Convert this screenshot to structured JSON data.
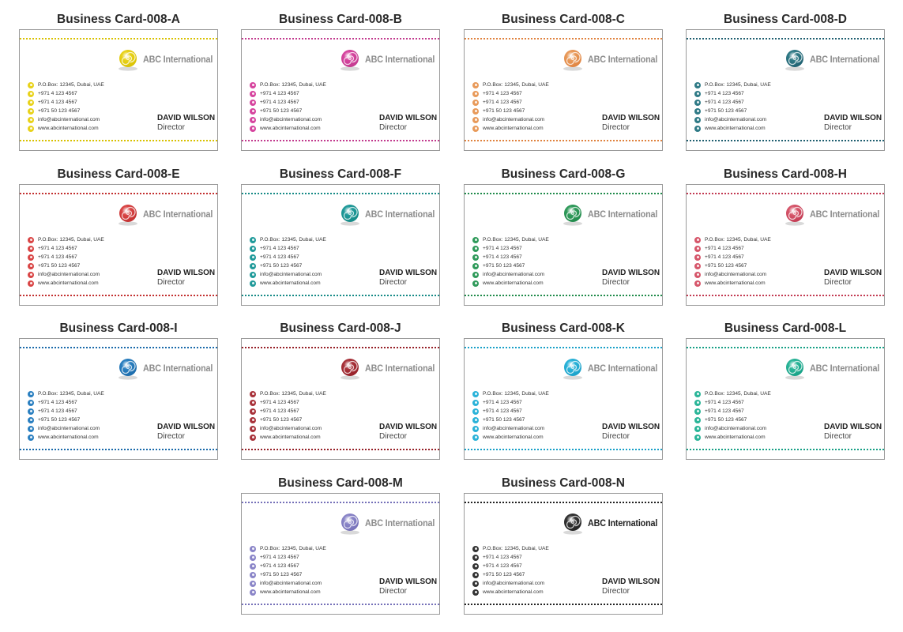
{
  "card_common": {
    "brand": "ABC International",
    "contacts": [
      {
        "icon": "location-icon",
        "text": "P.O.Box: 12345, Dubai, UAE"
      },
      {
        "icon": "phone-icon",
        "text": "+971 4 123 4567"
      },
      {
        "icon": "fax-icon",
        "text": "+971 4 123 4567"
      },
      {
        "icon": "mobile-icon",
        "text": "+971 50 123 4567"
      },
      {
        "icon": "email-icon",
        "text": "info@abcinternational.com"
      },
      {
        "icon": "web-icon",
        "text": "www.abcinternational.com"
      }
    ],
    "name": "DAVID WILSON",
    "role": "Director"
  },
  "cards": [
    {
      "id": "a",
      "title": "Business Card-008-A",
      "accent": "#e8d21a",
      "dot": "#d9c100"
    },
    {
      "id": "b",
      "title": "Business Card-008-B",
      "accent": "#d6449e",
      "dot": "#c23a8e"
    },
    {
      "id": "c",
      "title": "Business Card-008-C",
      "accent": "#e89a5a",
      "dot": "#e0823e"
    },
    {
      "id": "d",
      "title": "Business Card-008-D",
      "accent": "#2f7a86",
      "dot": "#1f5f70"
    },
    {
      "id": "e",
      "title": "Business Card-008-E",
      "accent": "#d94545",
      "dot": "#c23030"
    },
    {
      "id": "f",
      "title": "Business Card-008-F",
      "accent": "#1f9a9a",
      "dot": "#168a86"
    },
    {
      "id": "g",
      "title": "Business Card-008-G",
      "accent": "#2f9a5a",
      "dot": "#1f8a4a"
    },
    {
      "id": "h",
      "title": "Business Card-008-H",
      "accent": "#d6566a",
      "dot": "#c23a52"
    },
    {
      "id": "i",
      "title": "Business Card-008-I",
      "accent": "#2a7fc0",
      "dot": "#1a6aaa"
    },
    {
      "id": "j",
      "title": "Business Card-008-J",
      "accent": "#a8323a",
      "dot": "#962028"
    },
    {
      "id": "k",
      "title": "Business Card-008-K",
      "accent": "#2ab2d8",
      "dot": "#19a0c8"
    },
    {
      "id": "l",
      "title": "Business Card-008-L",
      "accent": "#2ab598",
      "dot": "#17a086"
    },
    {
      "id": "m",
      "title": "Business Card-008-M",
      "accent": "#8a85c8",
      "dot": "#7570b8"
    },
    {
      "id": "n",
      "title": "Business Card-008-N",
      "accent": "#333333",
      "dot": "#222222",
      "brand_color": "#222222"
    }
  ]
}
